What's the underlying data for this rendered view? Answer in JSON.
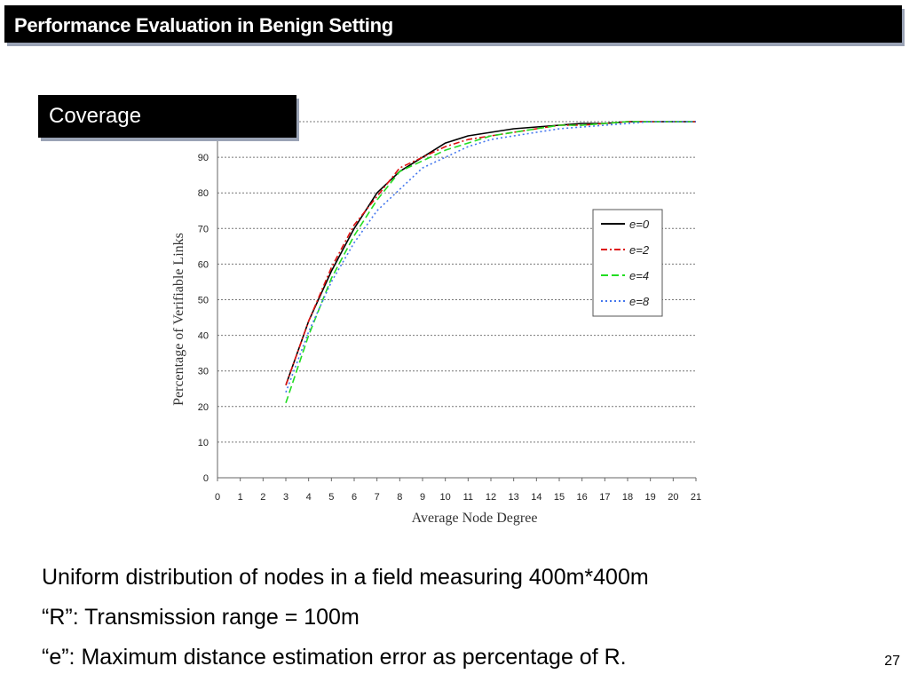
{
  "slide": {
    "title": "Performance Evaluation in Benign Setting",
    "subtitle": "Coverage",
    "bullets": [
      "Uniform distribution of nodes in a field measuring 400m*400m",
      "“R”: Transmission range = 100m",
      "“e”: Maximum distance estimation error as percentage of R."
    ],
    "page_number": "27"
  },
  "chart_data": {
    "type": "line",
    "title": "",
    "xlabel": "Average Node Degree",
    "ylabel": "Percentage of Verifiable Links",
    "xlim": [
      0,
      21
    ],
    "ylim": [
      0,
      100
    ],
    "x_ticks": [
      0,
      1,
      2,
      3,
      4,
      5,
      6,
      7,
      8,
      9,
      10,
      11,
      12,
      13,
      14,
      15,
      16,
      17,
      18,
      19,
      20,
      21
    ],
    "y_ticks": [
      0,
      10,
      20,
      30,
      40,
      50,
      60,
      70,
      80,
      90
    ],
    "grid": "horizontal-dotted",
    "legend_position": "right",
    "x": [
      3,
      4,
      5,
      6,
      7,
      8,
      9,
      10,
      11,
      12,
      13,
      14,
      15,
      16,
      17,
      18,
      19,
      20,
      21
    ],
    "series": [
      {
        "name": "e=0",
        "color": "#000000",
        "dash": "solid",
        "values": [
          26,
          44,
          58,
          70,
          80,
          86,
          90,
          94,
          96,
          97,
          98,
          98.5,
          99,
          99.5,
          99.5,
          100,
          100,
          100,
          100
        ]
      },
      {
        "name": "e=2",
        "color": "#dd1111",
        "dash": "dashdot",
        "values": [
          26,
          44,
          59,
          71,
          79,
          87,
          90,
          93,
          95,
          96,
          97,
          98,
          99,
          99,
          99.5,
          100,
          100,
          100,
          100
        ]
      },
      {
        "name": "e=4",
        "color": "#22dd22",
        "dash": "dashed",
        "values": [
          21,
          40,
          56,
          68,
          78,
          86,
          89,
          92,
          94,
          96,
          97,
          98,
          99,
          99,
          99.5,
          100,
          100,
          100,
          100
        ]
      },
      {
        "name": "e=8",
        "color": "#4477ee",
        "dash": "dotted",
        "values": [
          24,
          41,
          55,
          66,
          75,
          81,
          87,
          90,
          93,
          95,
          96,
          97,
          98,
          98.5,
          99,
          99.5,
          100,
          100,
          100
        ]
      }
    ]
  }
}
